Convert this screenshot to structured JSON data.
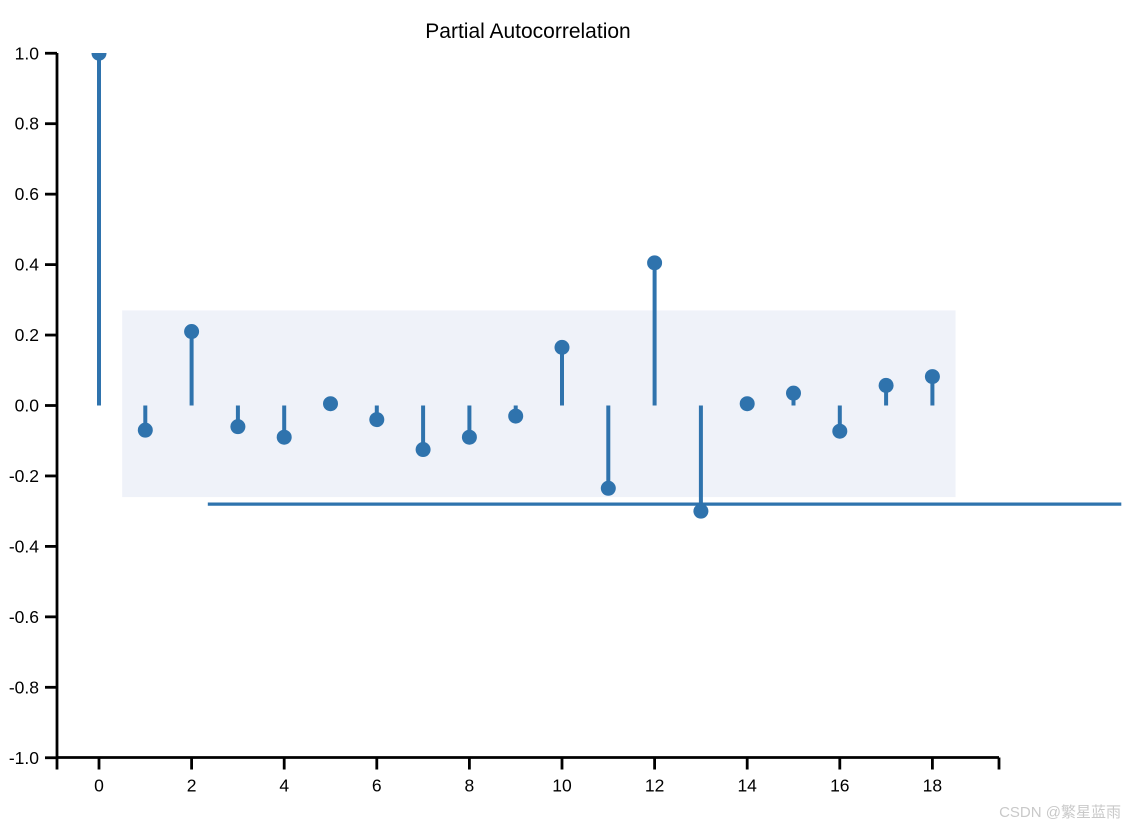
{
  "watermark": {
    "text": "CSDN @繁星蓝雨",
    "color": "#c9c9c9"
  },
  "chart_data": {
    "type": "stem",
    "title": "Partial Autocorrelation",
    "xlabel": "",
    "ylabel": "",
    "x": [
      0,
      1,
      2,
      3,
      4,
      5,
      6,
      7,
      8,
      9,
      10,
      11,
      12,
      13,
      14,
      15,
      16,
      17,
      18
    ],
    "values": [
      1.0,
      -0.07,
      0.21,
      -0.06,
      -0.09,
      0.005,
      -0.04,
      -0.125,
      -0.09,
      -0.03,
      0.165,
      -0.235,
      0.405,
      -0.3,
      0.005,
      0.035,
      -0.073,
      0.057,
      0.082
    ],
    "ylim": [
      -1.0,
      1.0
    ],
    "xlim": [
      -0.9,
      19.45
    ],
    "yticks": [
      1.0,
      0.8,
      0.6,
      0.4,
      0.2,
      0.0,
      -0.2,
      -0.4,
      -0.6,
      -0.8,
      -1.0
    ],
    "ytick_labels": [
      "1.0",
      "0.8",
      "0.6",
      "0.4",
      "0.2",
      "0.0",
      "-0.2",
      "-0.4",
      "-0.6",
      "-0.8",
      "-1.0"
    ],
    "xticks": [
      0,
      2,
      4,
      6,
      8,
      10,
      12,
      14,
      16,
      18
    ],
    "xtick_labels": [
      "0",
      "2",
      "4",
      "6",
      "8",
      "10",
      "12",
      "14",
      "16",
      "18"
    ],
    "confidence_band": {
      "x_min": 0.5,
      "x_max": 18.5,
      "y_min": -0.26,
      "y_max": 0.27
    },
    "threshold_line": {
      "y": -0.28,
      "x_start": 2.35,
      "x_end": 22.08,
      "extends_beyond_axes": true
    },
    "grid": false,
    "legend": null,
    "colors": {
      "stem": "#2f73ad",
      "band": "#eff2f9",
      "axis": "#000000"
    }
  }
}
